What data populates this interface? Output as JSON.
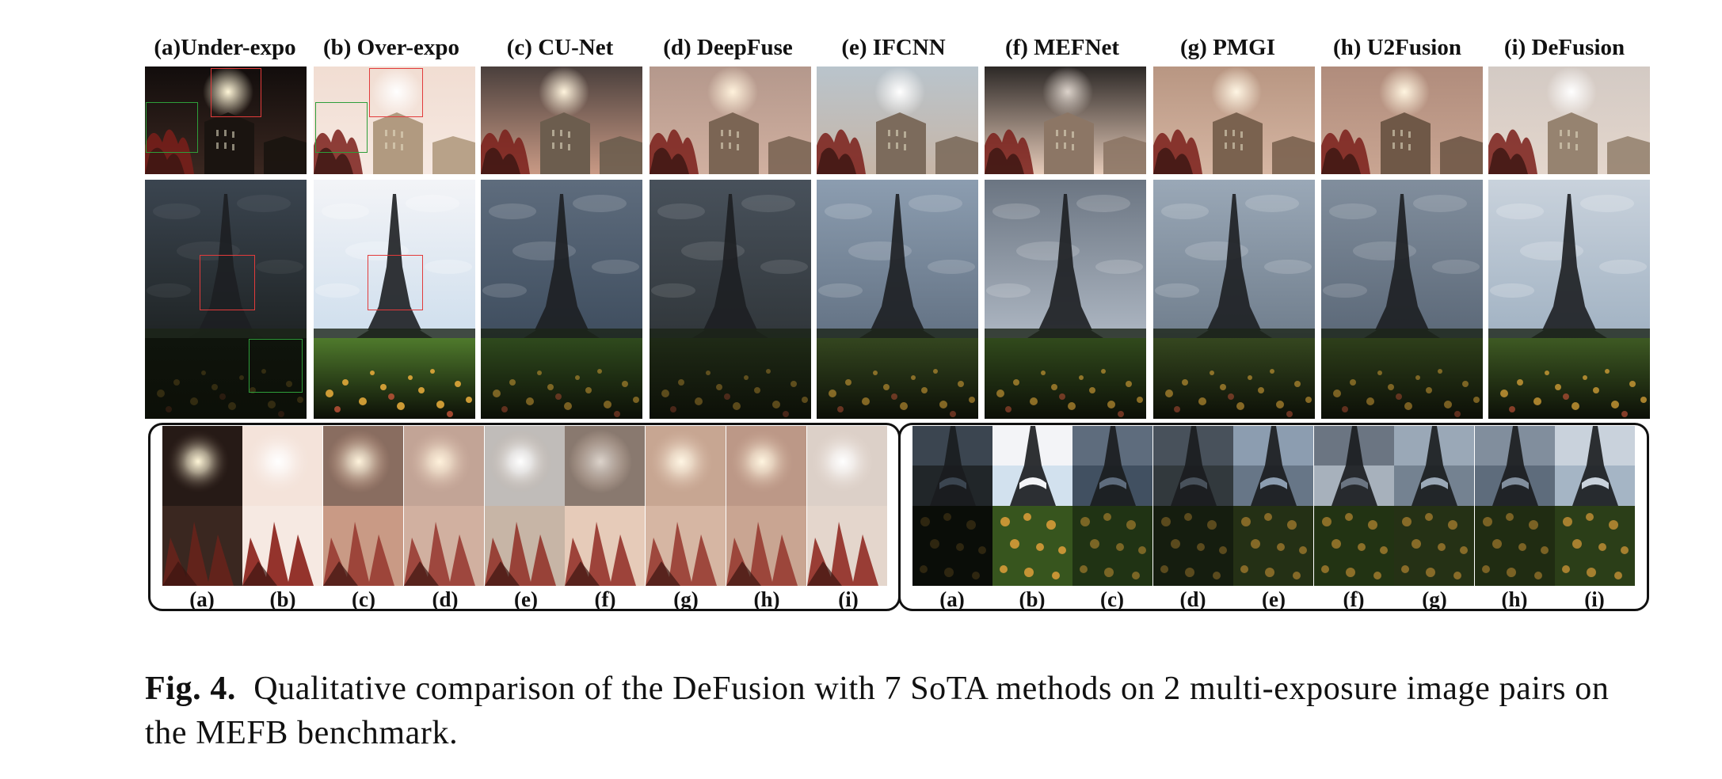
{
  "columns": [
    {
      "label": "(a)Under-expo"
    },
    {
      "label": "(b) Over-expo"
    },
    {
      "label": "(c) CU-Net"
    },
    {
      "label": "(d) DeepFuse"
    },
    {
      "label": "(e) IFCNN"
    },
    {
      "label": "(f) MEFNet"
    },
    {
      "label": "(g)  PMGI"
    },
    {
      "label": "(h) U2Fusion"
    },
    {
      "label": "(i) DeFusion"
    }
  ],
  "zoom_labels_left": [
    "(a)",
    "(b)",
    "(c)",
    "(d)",
    "(e)",
    "(f)",
    "(g)",
    "(h)",
    "(i)"
  ],
  "zoom_labels_right": [
    "(a)",
    "(b)",
    "(c)",
    "(d)",
    "(e)",
    "(f)",
    "(g)",
    "(h)",
    "(i)"
  ],
  "caption": {
    "prefix": "Fig. 4.",
    "text": "Qualitative comparison of the DeFusion with 7 SoTA methods on 2 multi-exposure image pairs on the MEFB benchmark."
  },
  "colors": {
    "zoom_red": "#e23b3b",
    "zoom_green": "#2e9e3a",
    "frame": "#111111"
  }
}
